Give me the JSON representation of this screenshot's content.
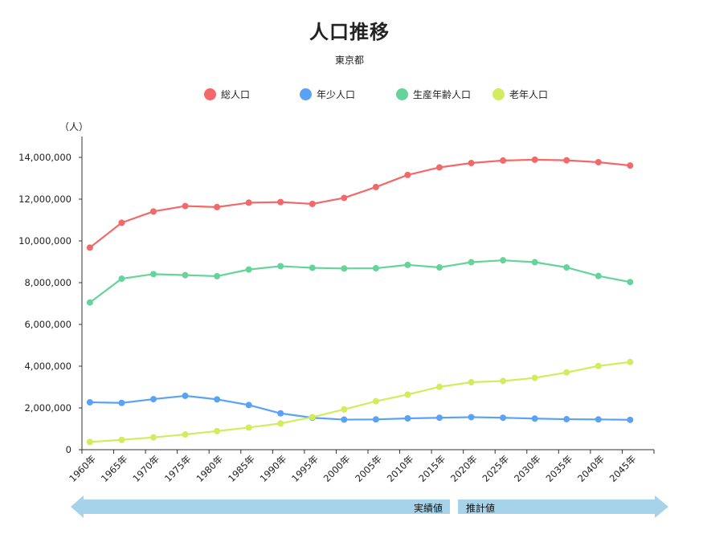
{
  "chart_data": {
    "type": "line",
    "title": "人口推移",
    "subtitle": "東京都",
    "ylabel": "（人）",
    "ylim": [
      0,
      15000000
    ],
    "yticks": [
      0,
      2000000,
      4000000,
      6000000,
      8000000,
      10000000,
      12000000,
      14000000
    ],
    "ytick_labels": [
      "0",
      "2,000,000",
      "4,000,000",
      "6,000,000",
      "8,000,000",
      "10,000,000",
      "12,000,000",
      "14,000,000"
    ],
    "categories": [
      "1960年",
      "1965年",
      "1970年",
      "1975年",
      "1980年",
      "1985年",
      "1990年",
      "1995年",
      "2000年",
      "2005年",
      "2010年",
      "2015年",
      "2020年",
      "2025年",
      "2030年",
      "2035年",
      "2040年",
      "2045年"
    ],
    "legend_position": "top",
    "grid": false,
    "series": [
      {
        "name": "総人口",
        "color": "#f36868",
        "values": [
          9680000,
          10870000,
          11410000,
          11670000,
          11620000,
          11830000,
          11860000,
          11770000,
          12060000,
          12580000,
          13160000,
          13520000,
          13730000,
          13850000,
          13890000,
          13860000,
          13770000,
          13610000
        ]
      },
      {
        "name": "年少人口",
        "color": "#5aa2f5",
        "values": [
          2270000,
          2240000,
          2420000,
          2580000,
          2410000,
          2140000,
          1740000,
          1530000,
          1440000,
          1450000,
          1500000,
          1530000,
          1560000,
          1530000,
          1490000,
          1460000,
          1450000,
          1430000
        ]
      },
      {
        "name": "生産年齢人口",
        "color": "#64d49b",
        "values": [
          7050000,
          8190000,
          8410000,
          8360000,
          8310000,
          8630000,
          8790000,
          8710000,
          8680000,
          8690000,
          8850000,
          8730000,
          8980000,
          9070000,
          8980000,
          8730000,
          8320000,
          8030000
        ]
      },
      {
        "name": "老年人口",
        "color": "#d1ed5e",
        "values": [
          370000,
          470000,
          590000,
          730000,
          890000,
          1060000,
          1260000,
          1560000,
          1930000,
          2320000,
          2640000,
          3010000,
          3230000,
          3290000,
          3440000,
          3700000,
          4010000,
          4200000
        ]
      }
    ],
    "annotations": {
      "actual_label": "実績値",
      "projection_label": "推計値",
      "band_color": "#a6d3ea"
    }
  }
}
